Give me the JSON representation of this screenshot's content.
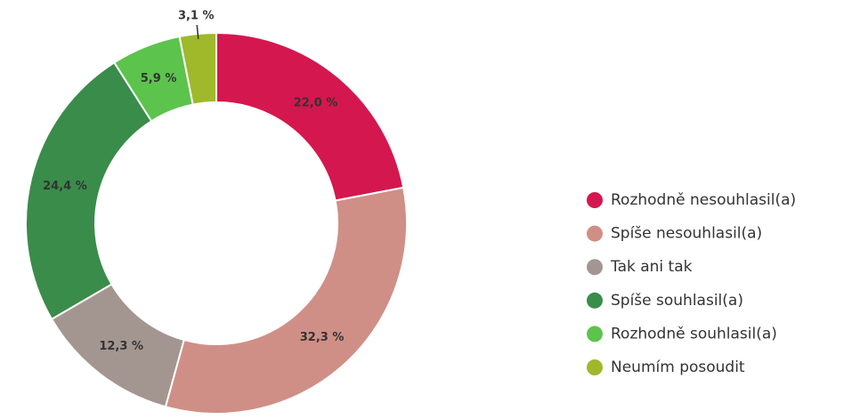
{
  "chart_data": {
    "type": "donut",
    "categories": [
      "Rozhodně nesouhlasil(a)",
      "Spíše nesouhlasil(a)",
      "Tak ani tak",
      "Spíše souhlasil(a)",
      "Rozhodně souhlasil(a)",
      "Neumím posoudit"
    ],
    "values": [
      22.0,
      32.3,
      12.3,
      24.4,
      5.9,
      3.1
    ],
    "value_labels": [
      "22,0 %",
      "32,3 %",
      "12,3 %",
      "24,4 %",
      "5,9 %",
      "3,1 %"
    ],
    "colors": [
      "#d4174f",
      "#cf8f87",
      "#a39690",
      "#3a8c4a",
      "#5cc44c",
      "#9fb92a"
    ],
    "legend": "right"
  }
}
